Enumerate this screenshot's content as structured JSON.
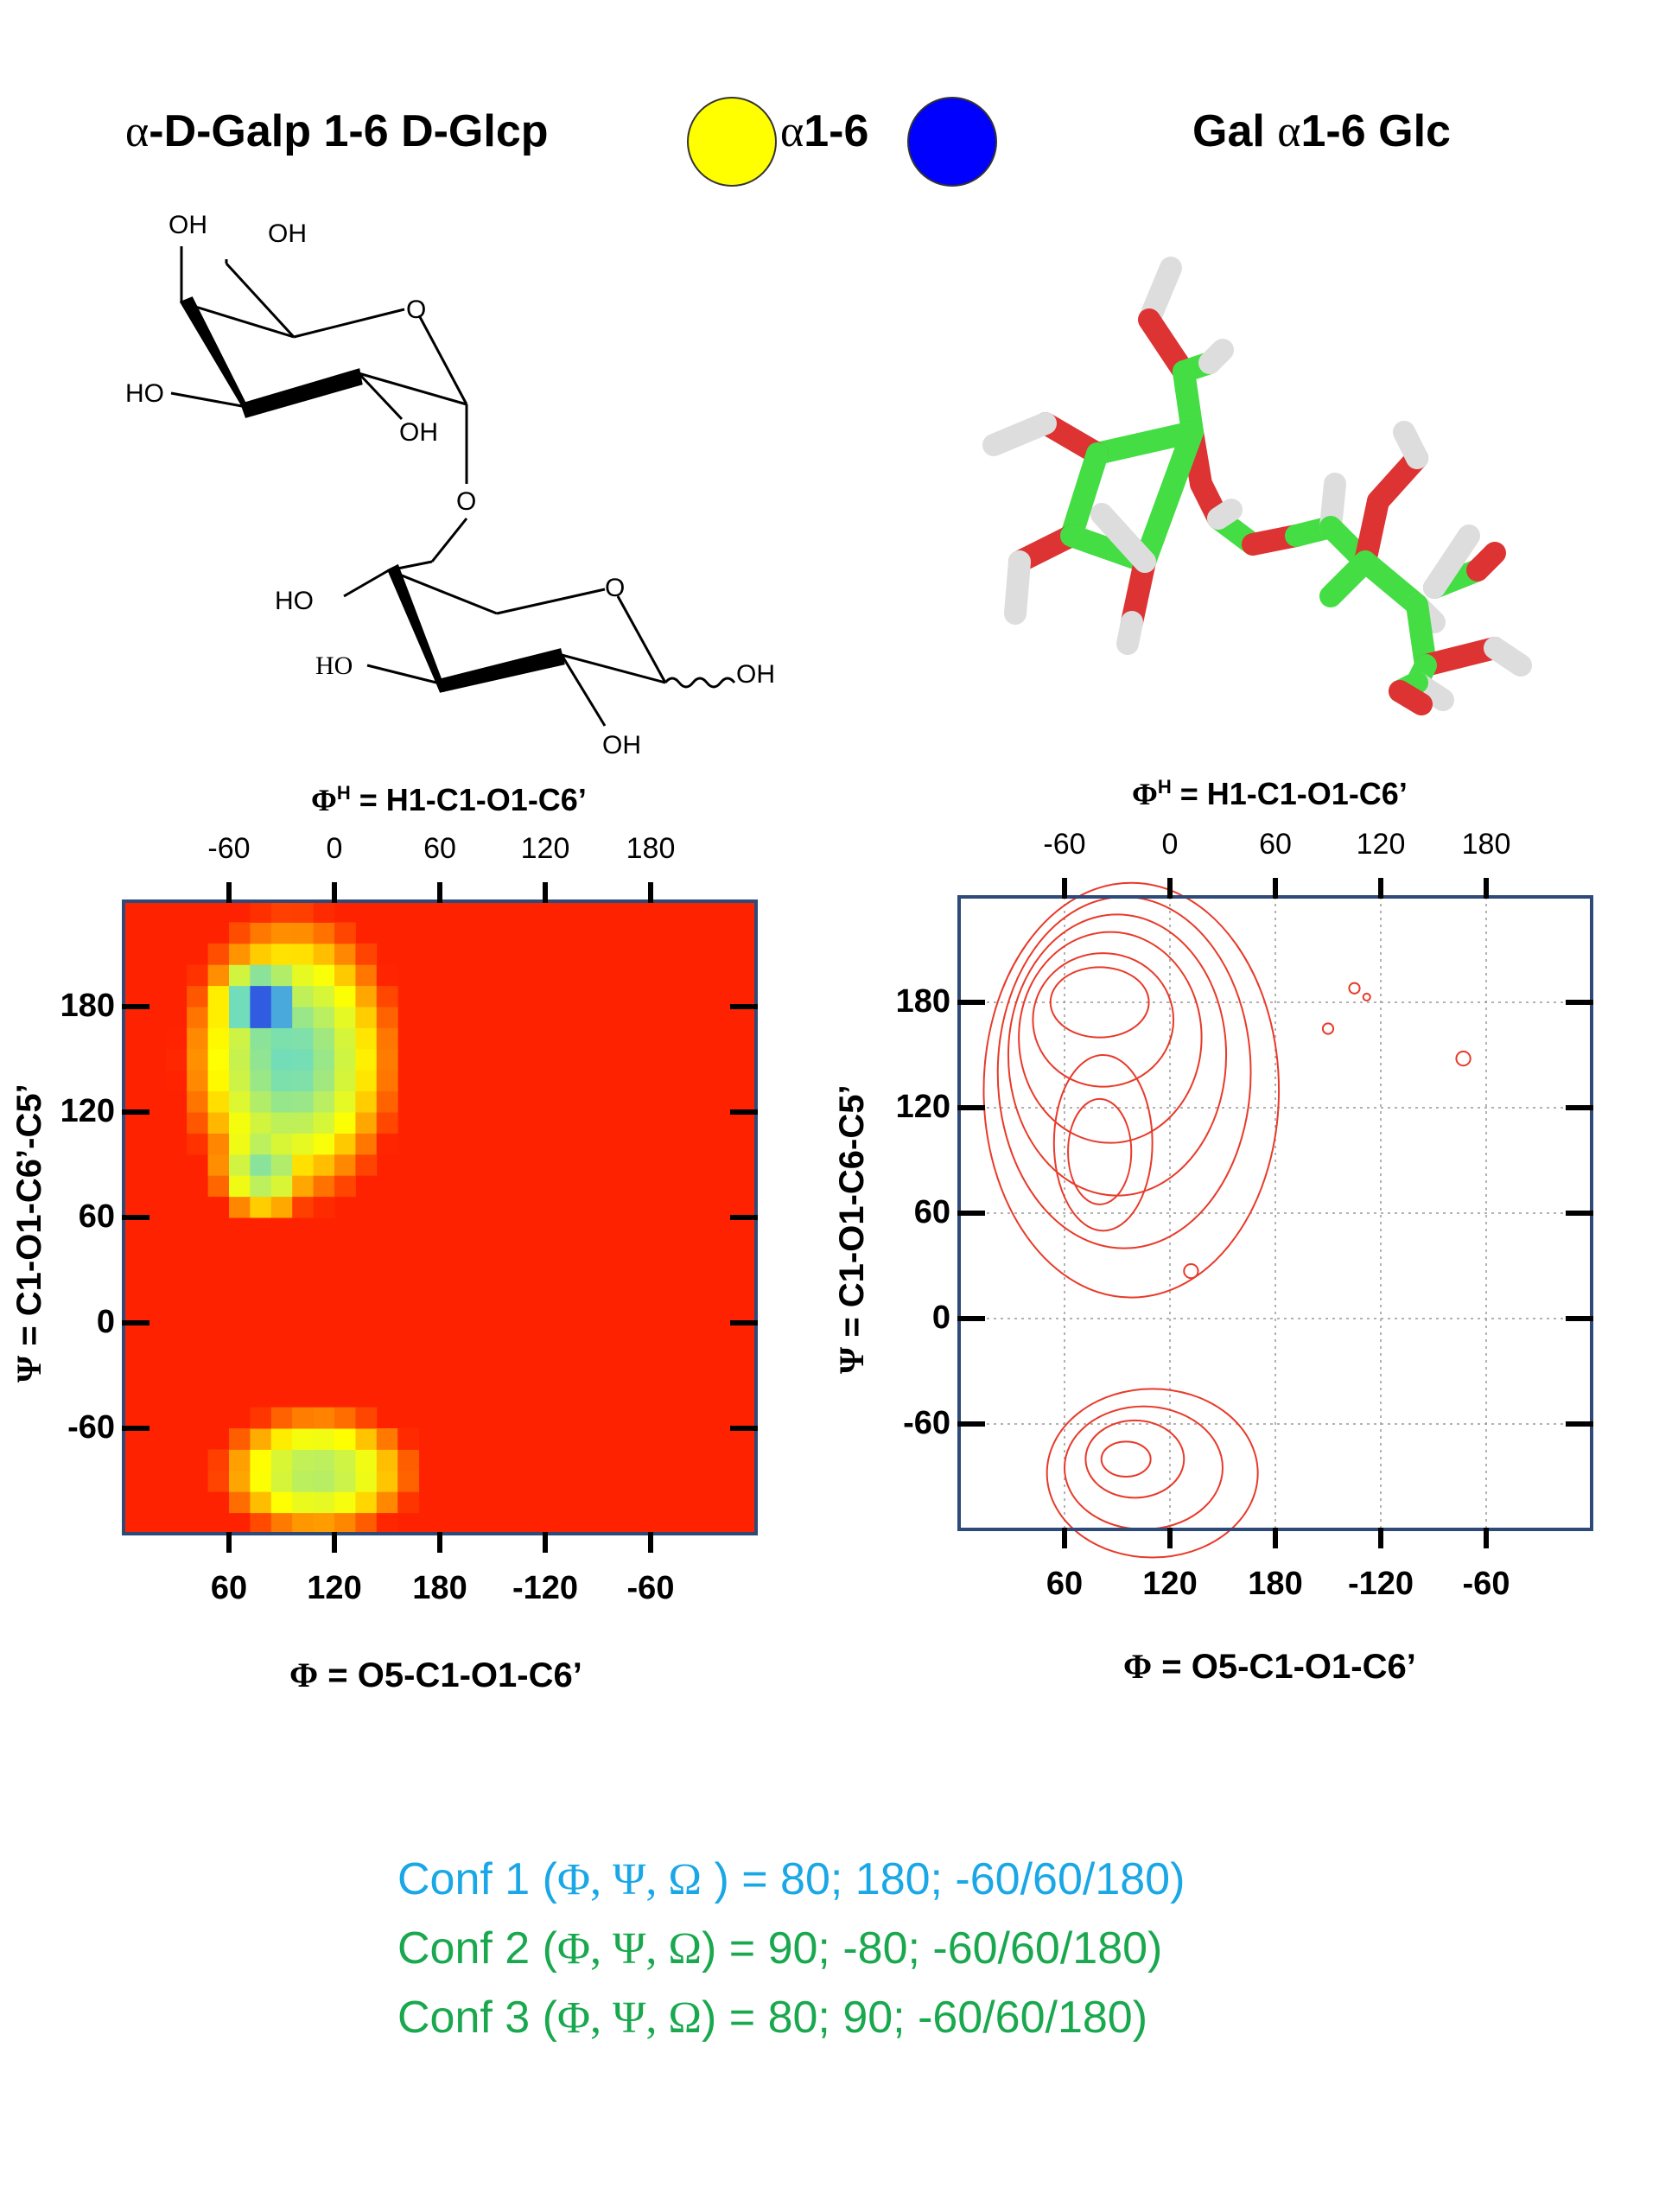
{
  "header": {
    "left_greek": "α",
    "left_rest": "-D-Galp 1-6 D-Glcp",
    "link_greek": "α",
    "link_rest": "1-6",
    "right_prefix": "Gal ",
    "right_greek": "α",
    "right_rest": "1-6 Glc",
    "colors": {
      "gal": "#ffff00",
      "glc": "#0000ff"
    }
  },
  "structure_labels": {
    "oh": "OH",
    "ho": "HO",
    "o": "O"
  },
  "colors": {
    "carbon": "#44dd44",
    "oxygen": "#dd3333",
    "hydrogen": "#dddddd",
    "contour": "#e83a2a",
    "heat_bg": "#ff2200",
    "frame": "#2e4a78",
    "conf1": "#1aa7e6",
    "conf2": "#1aa84f"
  },
  "chart_data": [
    {
      "type": "heatmap",
      "top_axis_label": "ΦH = H1-C1-O1-C6’",
      "top_axis_sym": "Φ",
      "top_axis_sup": "H",
      "top_axis_rest": " = H1-C1-O1-C6’",
      "top_ticks": [
        "-60",
        "0",
        "60",
        "120",
        "180"
      ],
      "bottom_axis_sym": "Φ",
      "bottom_axis_rest": " = O5-C1-O1-C6’",
      "bottom_ticks": [
        "60",
        "120",
        "180",
        "-120",
        "-60"
      ],
      "ylabel_sym": "Ψ",
      "ylabel_rest": " = C1-O1-C6’-C5’",
      "y_ticks": [
        "180",
        "120",
        "60",
        "0",
        "-60"
      ],
      "phi_range": [
        0,
        360
      ],
      "psi_range": [
        -120,
        240
      ],
      "high_density_regions": [
        {
          "phi": 80,
          "psi": 180,
          "level": 1.0
        },
        {
          "phi": 80,
          "psi": 90,
          "level": 0.7
        },
        {
          "phi": 100,
          "psi": -80,
          "level": 0.55
        }
      ]
    },
    {
      "type": "contour",
      "top_axis_sym": "Φ",
      "top_axis_sup": "H",
      "top_axis_rest": " = H1-C1-O1-C6’",
      "top_ticks": [
        "-60",
        "0",
        "60",
        "120",
        "180"
      ],
      "bottom_axis_sym": "Φ",
      "bottom_axis_rest": " = O5-C1-O1-C6’",
      "bottom_ticks": [
        "60",
        "120",
        "180",
        "-120",
        "-60"
      ],
      "ylabel_sym": "Ψ",
      "ylabel_rest": " = C1-O1-C6-C5’",
      "y_ticks": [
        "180",
        "120",
        "60",
        "0",
        "-60"
      ],
      "grid": true,
      "phi_range": [
        0,
        360
      ],
      "psi_range": [
        -120,
        240
      ]
    }
  ],
  "conformations": [
    {
      "label": "Conf 1 (",
      "syms": "Φ, Ψ, Ω",
      "rest": " ) =  80; 180; -60/60/180)"
    },
    {
      "label": "Conf 2 (",
      "syms": "Φ, Ψ, Ω",
      "rest": ") =   90;  -80;  -60/60/180)"
    },
    {
      "label": "Conf 3 (",
      "syms": "Φ, Ψ, Ω",
      "rest": ") =   80; 90;  -60/60/180)"
    }
  ]
}
